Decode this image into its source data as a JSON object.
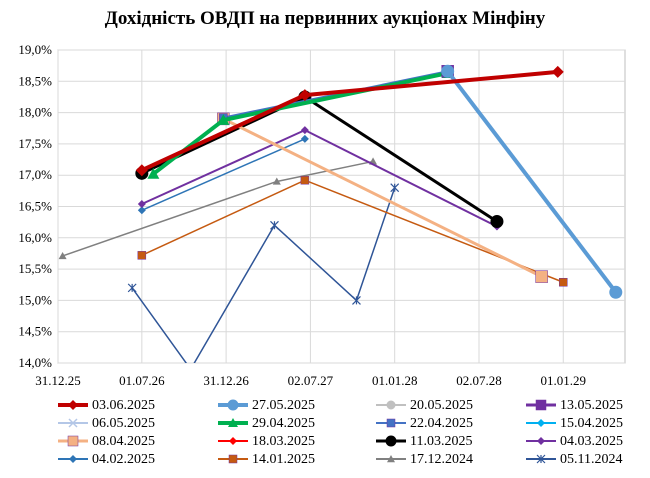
{
  "chart_data": {
    "type": "line",
    "title": "Дохідність ОВДП на первинних аукціонах Мінфіну",
    "xlabel": "",
    "ylabel": "",
    "ylim": [
      14.0,
      19.0
    ],
    "yticks": [
      "14,0%",
      "14,5%",
      "15,0%",
      "15,5%",
      "16,0%",
      "16,5%",
      "17,0%",
      "17,5%",
      "18,0%",
      "18,5%",
      "19,0%"
    ],
    "xlim": [
      "2025-12-31",
      "2029-05-15"
    ],
    "xticks": [
      {
        "date": "2025-12-31",
        "label": "31.12.25"
      },
      {
        "date": "2026-07-01",
        "label": "01.07.26"
      },
      {
        "date": "2026-12-31",
        "label": "31.12.26"
      },
      {
        "date": "2027-07-02",
        "label": "02.07.27"
      },
      {
        "date": "2028-01-01",
        "label": "01.01.28"
      },
      {
        "date": "2028-07-02",
        "label": "02.07.28"
      },
      {
        "date": "2029-01-01",
        "label": "01.01.29"
      }
    ],
    "grid": true,
    "legend_position": "bottom",
    "series": [
      {
        "name": "03.06.2025",
        "color": "#c00000",
        "marker": "diamond",
        "width": 4,
        "points": [
          [
            "2026-07-01",
            17.08
          ],
          [
            "2027-06-20",
            18.28
          ],
          [
            "2028-12-20",
            18.65
          ]
        ]
      },
      {
        "name": "27.05.2025",
        "color": "#5b9bd5",
        "marker": "circle",
        "width": 4,
        "points": [
          [
            "2028-04-25",
            18.66
          ],
          [
            "2029-04-25",
            15.13
          ]
        ]
      },
      {
        "name": "20.05.2025",
        "color": "#c0c0c0",
        "marker": "circle",
        "width": 2,
        "points": []
      },
      {
        "name": "13.05.2025",
        "color": "#7030a0",
        "marker": "square",
        "width": 3,
        "points": [
          [
            "2028-04-25",
            18.66
          ]
        ]
      },
      {
        "name": "06.05.2025",
        "color": "#b4c7e7",
        "marker": "x",
        "width": 2,
        "points": []
      },
      {
        "name": "29.04.2025",
        "color": "#00b050",
        "marker": "triangle",
        "width": 4,
        "points": [
          [
            "2026-07-26",
            17.02
          ],
          [
            "2026-12-25",
            17.88
          ],
          [
            "2028-04-25",
            18.63
          ]
        ]
      },
      {
        "name": "22.04.2025",
        "color": "#4472c4",
        "marker": "square",
        "width": 2,
        "points": [
          [
            "2026-12-25",
            17.92
          ],
          [
            "2028-04-25",
            18.66
          ]
        ]
      },
      {
        "name": "15.04.2025",
        "color": "#00b0f0",
        "marker": "diamond",
        "width": 2,
        "points": []
      },
      {
        "name": "08.04.2025",
        "color": "#f4b183",
        "marker": "square",
        "width": 3,
        "points": [
          [
            "2026-12-25",
            17.9
          ],
          [
            "2028-11-15",
            15.38
          ]
        ]
      },
      {
        "name": "18.03.2025",
        "color": "#ff0000",
        "marker": "diamond",
        "width": 2,
        "points": [
          [
            "2026-07-01",
            17.08
          ],
          [
            "2027-06-20",
            18.28
          ]
        ]
      },
      {
        "name": "11.03.2025",
        "color": "#000000",
        "marker": "circle",
        "width": 3,
        "points": [
          [
            "2026-07-01",
            17.03
          ],
          [
            "2027-06-20",
            18.25
          ],
          [
            "2028-08-10",
            16.26
          ]
        ]
      },
      {
        "name": "04.03.2025",
        "color": "#7030a0",
        "marker": "diamond",
        "width": 2,
        "points": [
          [
            "2026-07-01",
            16.54
          ],
          [
            "2027-06-20",
            17.72
          ],
          [
            "2028-08-10",
            16.18
          ]
        ]
      },
      {
        "name": "04.02.2025",
        "color": "#2e75b6",
        "marker": "diamond",
        "width": 1.5,
        "points": [
          [
            "2026-07-01",
            16.44
          ],
          [
            "2027-06-20",
            17.58
          ]
        ]
      },
      {
        "name": "14.01.2025",
        "color": "#c55a11",
        "marker": "square",
        "width": 1.5,
        "points": [
          [
            "2026-07-01",
            15.72
          ],
          [
            "2027-06-20",
            16.92
          ],
          [
            "2029-01-01",
            15.29
          ]
        ]
      },
      {
        "name": "17.12.2024",
        "color": "#808080",
        "marker": "triangle",
        "width": 1.5,
        "points": [
          [
            "2026-01-10",
            15.71
          ],
          [
            "2027-04-20",
            16.9
          ],
          [
            "2027-11-15",
            17.22
          ]
        ]
      },
      {
        "name": "05.11.2024",
        "color": "#2f5597",
        "marker": "star",
        "width": 1.5,
        "points": [
          [
            "2026-06-10",
            15.2
          ],
          [
            "2026-10-15",
            13.9
          ],
          [
            "2027-04-15",
            16.2
          ],
          [
            "2027-10-10",
            15.0
          ],
          [
            "2028-01-01",
            16.8
          ]
        ]
      }
    ]
  }
}
